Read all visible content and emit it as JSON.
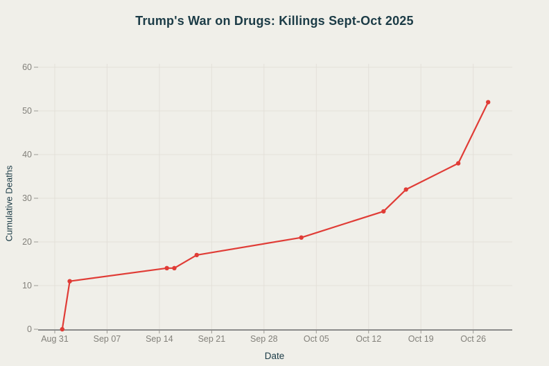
{
  "chart": {
    "title": "Trump's War on Drugs: Killings Sept-Oct 2025",
    "xlabel": "Date",
    "ylabel": "Cumulative Deaths"
  },
  "chart_data": {
    "type": "line",
    "title": "Trump's War on Drugs: Killings Sept-Oct 2025",
    "xlabel": "Date",
    "ylabel": "Cumulative Deaths",
    "series": [
      {
        "name": "Cumulative Deaths",
        "points": [
          {
            "date": "Sep 01",
            "day": 1,
            "deaths": 0
          },
          {
            "date": "Sep 02",
            "day": 2,
            "deaths": 11
          },
          {
            "date": "Sep 15",
            "day": 15,
            "deaths": 14
          },
          {
            "date": "Sep 16",
            "day": 16,
            "deaths": 14
          },
          {
            "date": "Sep 19",
            "day": 19,
            "deaths": 17
          },
          {
            "date": "Oct 03",
            "day": 33,
            "deaths": 21
          },
          {
            "date": "Oct 14",
            "day": 44,
            "deaths": 27
          },
          {
            "date": "Oct 17",
            "day": 47,
            "deaths": 32
          },
          {
            "date": "Oct 24",
            "day": 54,
            "deaths": 38
          },
          {
            "date": "Oct 28",
            "day": 58,
            "deaths": 52
          }
        ]
      }
    ],
    "x_ticks": [
      {
        "label": "Aug 31",
        "day": 0
      },
      {
        "label": "Sep 07",
        "day": 7
      },
      {
        "label": "Sep 14",
        "day": 14
      },
      {
        "label": "Sep 21",
        "day": 21
      },
      {
        "label": "Sep 28",
        "day": 28
      },
      {
        "label": "Oct 05",
        "day": 35
      },
      {
        "label": "Oct 12",
        "day": 42
      },
      {
        "label": "Oct 19",
        "day": 49
      },
      {
        "label": "Oct 26",
        "day": 56
      }
    ],
    "y_ticks": [
      0,
      10,
      20,
      30,
      40,
      50,
      60
    ],
    "ylim": [
      0,
      60
    ],
    "grid": true,
    "legend_position": "none"
  },
  "colors": {
    "background": "#f0efe9",
    "line": "#e03c36",
    "marker": "#e03c36",
    "grid": "#e3e0d9",
    "axis_line": "#8a8a8a",
    "tick_mark": "#9a9892",
    "tick_text": "#82807a",
    "title_text": "#1b3b46"
  }
}
